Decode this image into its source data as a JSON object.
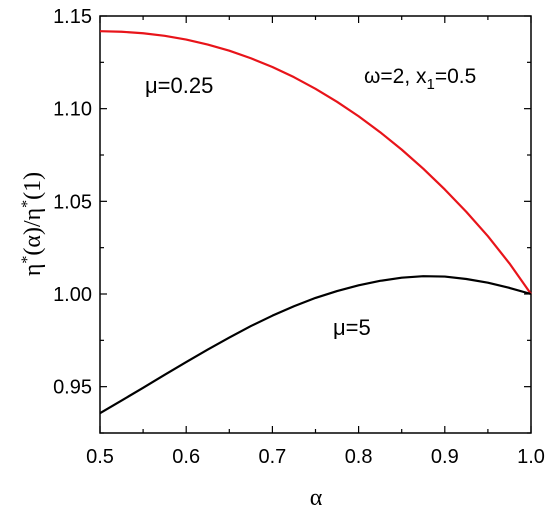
{
  "chart_data": {
    "type": "line",
    "xlim": [
      0.5,
      1.0
    ],
    "ylim": [
      0.925,
      1.15
    ],
    "xticks": [
      0.5,
      0.6,
      0.7,
      0.8,
      0.9,
      1.0
    ],
    "xtick_labels": [
      "0.5",
      "0.6",
      "0.7",
      "0.8",
      "0.9",
      "1.0"
    ],
    "yticks": [
      0.95,
      1.0,
      1.05,
      1.1,
      1.15
    ],
    "ytick_labels": [
      "0.95",
      "1.00",
      "1.05",
      "1.10",
      "1.15"
    ],
    "xlabel": "α",
    "ylabel": {
      "base": "η",
      "sup1": "*",
      "mid": "(α)/η",
      "sup2": "*",
      "tail": "(1)"
    },
    "grid": false,
    "legend": "none",
    "annotations": {
      "params": {
        "prefix": "ω=2, x",
        "sub": "1",
        "suffix": "=0.5"
      },
      "mu_low": "μ=0.25",
      "mu_high": "μ=5"
    },
    "series": [
      {
        "color": "#e8141a",
        "x": [
          0.5,
          0.525,
          0.55,
          0.575,
          0.6,
          0.625,
          0.65,
          0.675,
          0.7,
          0.725,
          0.75,
          0.775,
          0.8,
          0.825,
          0.85,
          0.875,
          0.9,
          0.925,
          0.95,
          0.975,
          1.0
        ],
        "y": [
          1.1418,
          1.1415,
          1.1407,
          1.1393,
          1.1373,
          1.1346,
          1.1313,
          1.1272,
          1.1225,
          1.117,
          1.1107,
          1.1037,
          1.0959,
          1.0873,
          1.0779,
          1.0676,
          1.0564,
          1.0443,
          1.0312,
          1.0165,
          1.0
        ]
      },
      {
        "color": "#000000",
        "x": [
          0.5,
          0.525,
          0.55,
          0.575,
          0.6,
          0.625,
          0.65,
          0.675,
          0.7,
          0.725,
          0.75,
          0.775,
          0.8,
          0.825,
          0.85,
          0.875,
          0.9,
          0.925,
          0.95,
          0.975,
          1.0
        ],
        "y": [
          0.9357,
          0.9425,
          0.9494,
          0.9564,
          0.9633,
          0.97,
          0.9765,
          0.9827,
          0.9883,
          0.9934,
          0.9979,
          1.0016,
          1.0047,
          1.0071,
          1.0088,
          1.0096,
          1.0094,
          1.0081,
          1.0061,
          1.0033,
          1.0
        ]
      }
    ]
  }
}
